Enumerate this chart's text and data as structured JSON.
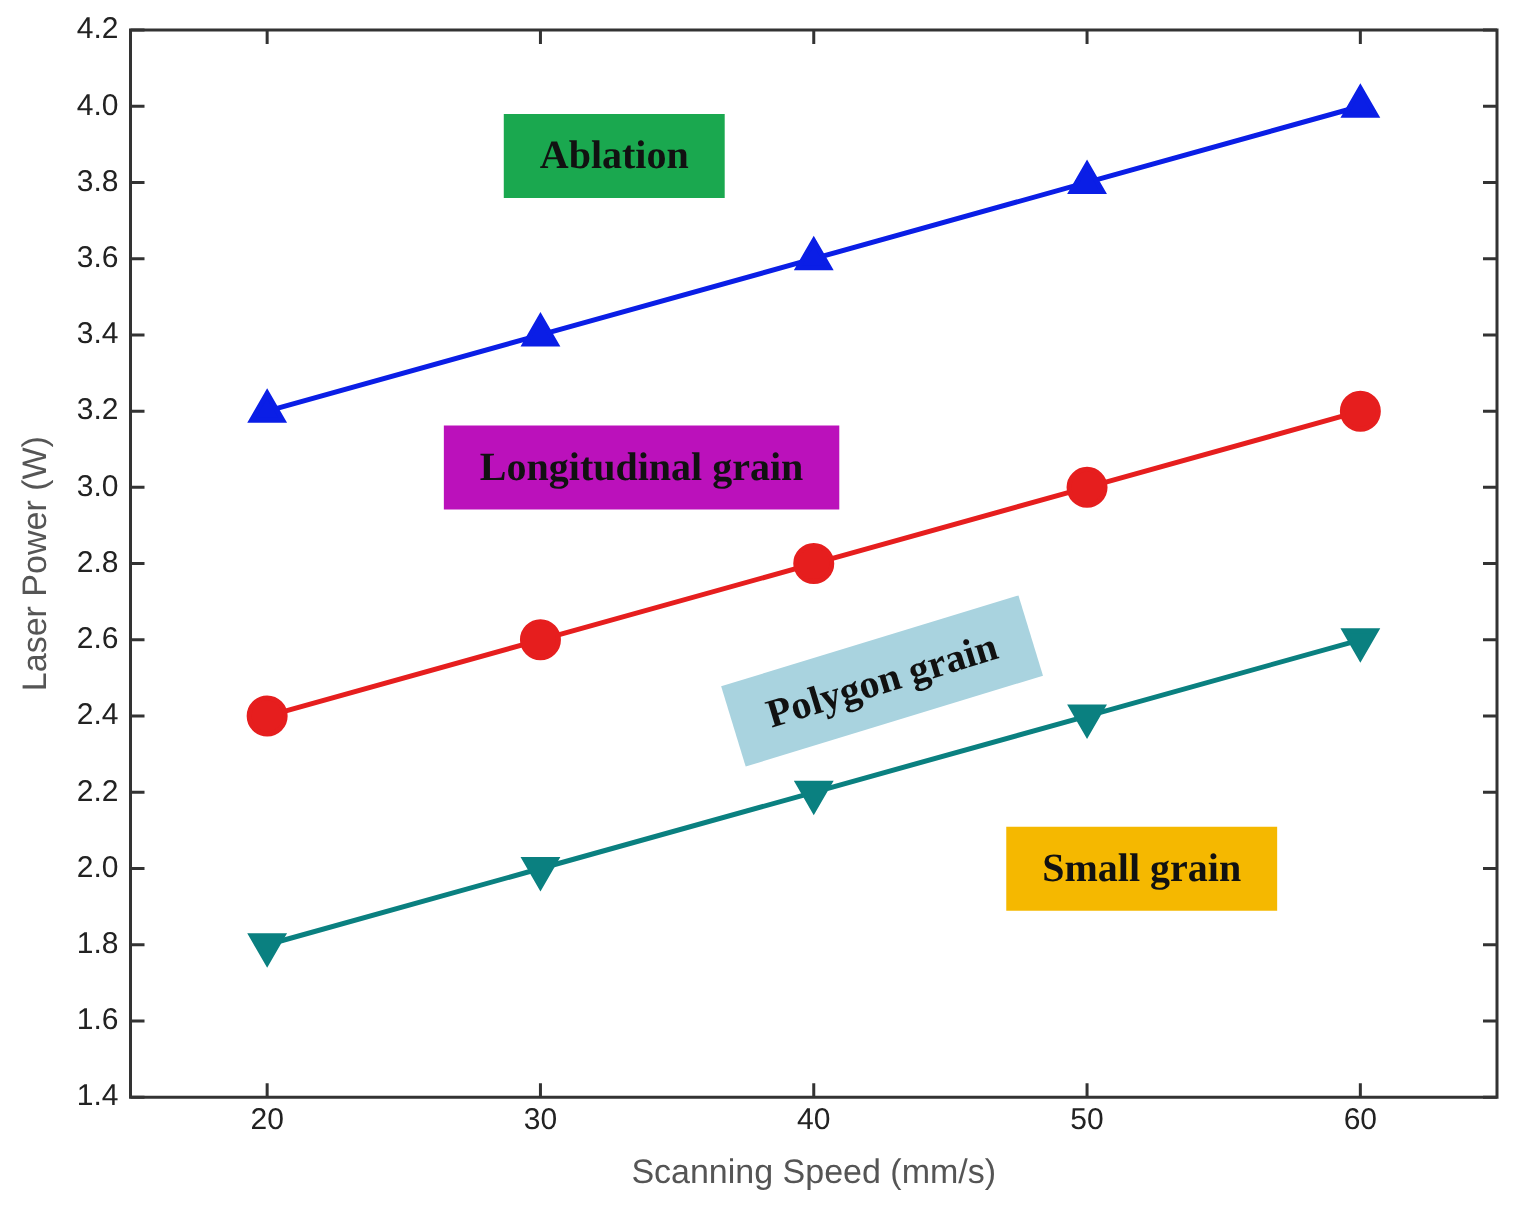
{
  "chart_data": {
    "type": "line",
    "xlabel": "Scanning Speed (mm/s)",
    "ylabel": "Laser Power (W)",
    "x": [
      20,
      30,
      40,
      50,
      60
    ],
    "series": [
      {
        "color": "#0a1ee6",
        "marker": "triangle",
        "values": [
          3.2,
          3.4,
          3.6,
          3.8,
          4.0
        ]
      },
      {
        "color": "#e61e1e",
        "marker": "circle",
        "values": [
          2.4,
          2.6,
          2.8,
          3.0,
          3.2
        ]
      },
      {
        "color": "#0a8080",
        "marker": "triangle-down",
        "values": [
          1.8,
          2.0,
          2.2,
          2.4,
          2.6
        ]
      }
    ],
    "xlim": [
      15,
      65
    ],
    "xticks": [
      20,
      30,
      40,
      50,
      60
    ],
    "ylim": [
      1.4,
      4.2
    ],
    "yticks": [
      1.4,
      1.6,
      1.8,
      {
        "value": 2,
        "label": "2.0"
      },
      2.2,
      2.4,
      2.6,
      2.8,
      {
        "value": 3,
        "label": "3.0"
      },
      3.2,
      3.4,
      3.6,
      3.8,
      {
        "value": 4,
        "label": "4.0"
      },
      4.2
    ],
    "annotations": [
      "Ablation",
      "Longitudinal grain",
      "Polygon grain",
      "Small grain"
    ],
    "grid": false,
    "legend": false,
    "line_style": "solid"
  }
}
